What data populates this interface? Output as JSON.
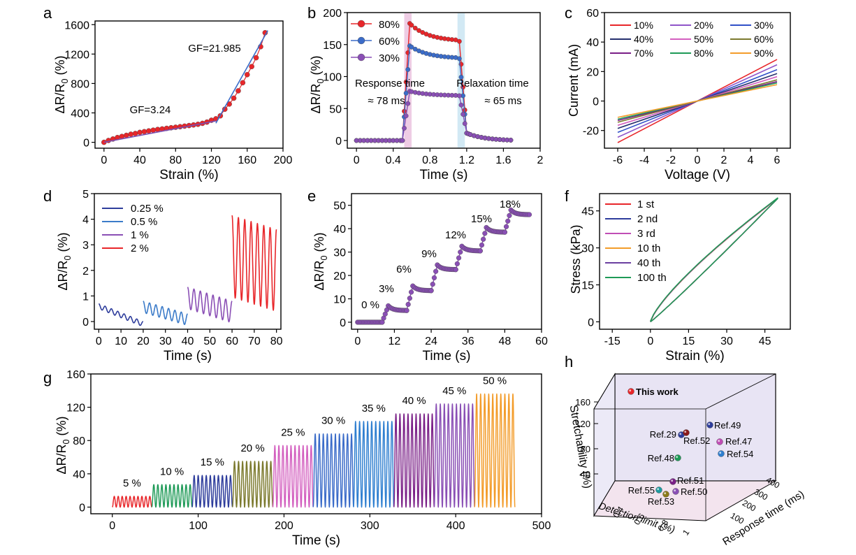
{
  "chart_data": [
    {
      "panel": "a",
      "type": "scatter",
      "xlabel": "Strain (%)",
      "ylabel": "ΔR/R0 (%)",
      "xlim": [
        -10,
        200
      ],
      "ylim": [
        -80,
        1650
      ],
      "xticks": [
        0,
        40,
        80,
        120,
        160,
        200
      ],
      "yticks": [
        0,
        400,
        800,
        1200,
        1600
      ],
      "series": [
        {
          "color": "#e8262a",
          "x": [
            0,
            5,
            10,
            15,
            20,
            25,
            30,
            35,
            40,
            45,
            50,
            55,
            60,
            65,
            70,
            75,
            80,
            85,
            90,
            95,
            100,
            105,
            110,
            115,
            120,
            125,
            130,
            135,
            140,
            145,
            150,
            155,
            160,
            165,
            170,
            175,
            180
          ],
          "values": [
            0,
            25,
            45,
            65,
            80,
            95,
            110,
            120,
            135,
            145,
            155,
            165,
            175,
            182,
            190,
            198,
            205,
            212,
            220,
            228,
            236,
            245,
            258,
            275,
            300,
            320,
            360,
            450,
            520,
            600,
            700,
            810,
            920,
            1030,
            1150,
            1300,
            1490
          ]
        }
      ],
      "fits": [
        {
          "label": "GF=3.24",
          "color": "#7a4fb0",
          "x": [
            0,
            125
          ],
          "values": [
            0,
            290
          ]
        },
        {
          "label": "GF=21.985",
          "color": "#3b6cc9",
          "x": [
            125,
            183
          ],
          "values": [
            260,
            1520
          ]
        }
      ]
    },
    {
      "panel": "b",
      "type": "line",
      "xlabel": "Time (s)",
      "ylabel": "ΔR/R0 (%)",
      "xlim": [
        -0.1,
        2.0
      ],
      "ylim": [
        -12,
        200
      ],
      "xticks": [
        0.0,
        0.4,
        0.8,
        1.2,
        1.6,
        2.0
      ],
      "yticks": [
        0,
        50,
        100,
        150,
        200
      ],
      "bands": [
        {
          "x": [
            0.52,
            0.6
          ],
          "color": "#e7b6d8"
        },
        {
          "x": [
            1.1,
            1.18
          ],
          "color": "#bfe0ef"
        }
      ],
      "annotations": [
        "Response time",
        "≈ 78 ms",
        "Relaxation time",
        "≈ 65 ms"
      ],
      "legend": "top-left",
      "series": [
        {
          "name": "80%",
          "color": "#e8262a",
          "peak": 183,
          "plateau": 155
        },
        {
          "name": "60%",
          "color": "#3b6cc9",
          "peak": 148,
          "plateau": 128
        },
        {
          "name": "30%",
          "color": "#8a4fb5",
          "peak": 77,
          "plateau": 70
        }
      ]
    },
    {
      "panel": "c",
      "type": "line",
      "xlabel": "Voltage (V)",
      "ylabel": "Current (mA)",
      "xlim": [
        -7,
        7
      ],
      "ylim": [
        -32,
        60
      ],
      "xticks": [
        -6,
        -4,
        -2,
        0,
        2,
        4,
        6
      ],
      "yticks": [
        -20,
        0,
        20,
        40,
        60
      ],
      "legend": "top",
      "series": [
        {
          "name": "10%",
          "color": "#e8262a",
          "slope": 4.7
        },
        {
          "name": "20%",
          "color": "#8f55c9",
          "slope": 4.1
        },
        {
          "name": "30%",
          "color": "#3050c8",
          "slope": 3.55
        },
        {
          "name": "40%",
          "color": "#25306e",
          "slope": 3.1
        },
        {
          "name": "50%",
          "color": "#d35fbf",
          "slope": 2.75
        },
        {
          "name": "60%",
          "color": "#7c7a2e",
          "slope": 2.4
        },
        {
          "name": "70%",
          "color": "#7a1f87",
          "slope": 2.2
        },
        {
          "name": "80%",
          "color": "#1e9a57",
          "slope": 2.05
        },
        {
          "name": "90%",
          "color": "#f39c2a",
          "slope": 1.85
        }
      ]
    },
    {
      "panel": "d",
      "type": "line",
      "xlabel": "Time (s)",
      "ylabel": "ΔR/R0 (%)",
      "xlim": [
        -2,
        82
      ],
      "ylim": [
        -0.3,
        5.0
      ],
      "xticks": [
        0,
        10,
        20,
        30,
        40,
        50,
        60,
        70,
        80
      ],
      "yticks": [
        0.0,
        1.0,
        2.0,
        3.0,
        4.0,
        5.0
      ],
      "legend": "top-left",
      "series": [
        {
          "name": "0.25 %",
          "color": "#2e3d9c",
          "t": [
            0,
            20
          ],
          "start": 0.7,
          "end": 0.0,
          "amp": 0.2
        },
        {
          "name": "0.5 %",
          "color": "#3b7bc9",
          "t": [
            20,
            40
          ],
          "start": 0.8,
          "end": 0.3,
          "amp": 0.45
        },
        {
          "name": "1 %",
          "color": "#8a4fb5",
          "t": [
            40,
            60
          ],
          "start": 1.35,
          "end": 0.8,
          "amp": 0.85
        },
        {
          "name": "2 %",
          "color": "#e8262a",
          "t": [
            60,
            80
          ],
          "start": 4.15,
          "end": 3.6,
          "amp": 3.2
        }
      ]
    },
    {
      "panel": "e",
      "type": "line",
      "xlabel": "Time (s)",
      "ylabel": "ΔR/R0 (%)",
      "xlim": [
        -2,
        60
      ],
      "ylim": [
        -3,
        55
      ],
      "xticks": [
        0,
        12,
        24,
        36,
        48,
        60
      ],
      "yticks": [
        0,
        10,
        20,
        30,
        40,
        50
      ],
      "color": "#8a4fb5",
      "steps": [
        {
          "label": "0 %",
          "t": [
            0,
            8
          ],
          "level": 0
        },
        {
          "label": "3%",
          "t": [
            8,
            16
          ],
          "level": 5
        },
        {
          "label": "6%",
          "t": [
            16,
            24
          ],
          "level": 13.5
        },
        {
          "label": "9%",
          "t": [
            24,
            32
          ],
          "level": 22.5
        },
        {
          "label": "12%",
          "t": [
            32,
            40
          ],
          "level": 30.5
        },
        {
          "label": "15%",
          "t": [
            40,
            48
          ],
          "level": 38.5
        },
        {
          "label": "18%",
          "t": [
            48,
            56
          ],
          "level": 46
        }
      ]
    },
    {
      "panel": "f",
      "type": "line",
      "xlabel": "Strain (%)",
      "ylabel": "Stress (kPa)",
      "xlim": [
        -20,
        55
      ],
      "ylim": [
        -3,
        52
      ],
      "xticks": [
        -15,
        0,
        15,
        30,
        45
      ],
      "yticks": [
        0,
        15,
        30,
        45
      ],
      "legend": "top-left",
      "series": [
        {
          "name": "1 st",
          "color": "#e8262a"
        },
        {
          "name": "2 nd",
          "color": "#2e3d9c"
        },
        {
          "name": "3 rd",
          "color": "#c04db5"
        },
        {
          "name": "10 th",
          "color": "#f39c2a"
        },
        {
          "name": "40 th",
          "color": "#6b3fa0"
        },
        {
          "name": "100 th",
          "color": "#1e9a57"
        }
      ]
    },
    {
      "panel": "g",
      "type": "line",
      "xlabel": "Time (s)",
      "ylabel": "ΔR/R0 (%)",
      "xlim": [
        -25,
        500
      ],
      "ylim": [
        -8,
        160
      ],
      "xticks": [
        0,
        100,
        200,
        300,
        400,
        500
      ],
      "yticks": [
        0,
        40,
        80,
        120,
        160
      ],
      "segments": [
        {
          "label": "5 %",
          "color": "#e8262a",
          "t": [
            0,
            46
          ],
          "peak": 13
        },
        {
          "label": "10 %",
          "color": "#1e9a57",
          "t": [
            46,
            93
          ],
          "peak": 27
        },
        {
          "label": "15 %",
          "color": "#2e3d9c",
          "t": [
            93,
            140
          ],
          "peak": 38
        },
        {
          "label": "20 %",
          "color": "#7c7a2e",
          "t": [
            140,
            187
          ],
          "peak": 55
        },
        {
          "label": "25 %",
          "color": "#d35fbf",
          "t": [
            187,
            234
          ],
          "peak": 74
        },
        {
          "label": "30 %",
          "color": "#3b6cc9",
          "t": [
            234,
            281
          ],
          "peak": 88
        },
        {
          "label": "35 %",
          "color": "#2f7fd0",
          "t": [
            281,
            328
          ],
          "peak": 103
        },
        {
          "label": "40 %",
          "color": "#7a1f87",
          "t": [
            328,
            375
          ],
          "peak": 112
        },
        {
          "label": "45 %",
          "color": "#8a4fb5",
          "t": [
            375,
            422
          ],
          "peak": 124
        },
        {
          "label": "50 %",
          "color": "#f39c2a",
          "t": [
            422,
            469
          ],
          "peak": 136
        }
      ]
    },
    {
      "panel": "h",
      "type": "scatter",
      "xlabel": "Detection limit (%)",
      "ylabel": "Stretchability (%)",
      "zlabel": "Response time (ms)",
      "yticks": [
        40,
        80,
        120,
        160
      ],
      "xticks": [
        0.4,
        0.6,
        0.8,
        1.0
      ],
      "zticks": [
        100,
        200,
        300,
        400
      ],
      "points": [
        {
          "label": "This work",
          "color": "#e8262a"
        },
        {
          "label": "Ref.49",
          "color": "#2e3d9c"
        },
        {
          "label": "Ref.29",
          "color": "#2e3d9c"
        },
        {
          "label": "Ref.52",
          "color": "#8b1a1a"
        },
        {
          "label": "Ref.47",
          "color": "#c04db5"
        },
        {
          "label": "Ref.54",
          "color": "#2f7fd0"
        },
        {
          "label": "Ref.48",
          "color": "#1e9a57"
        },
        {
          "label": "Ref.51",
          "color": "#7a1f87"
        },
        {
          "label": "Ref.55",
          "color": "#1e9aa0"
        },
        {
          "label": "Ref.50",
          "color": "#8a4fb5"
        },
        {
          "label": "Ref.53",
          "color": "#8a7a1a"
        }
      ]
    }
  ],
  "panel_labels": [
    "a",
    "b",
    "c",
    "d",
    "e",
    "f",
    "g",
    "h"
  ]
}
